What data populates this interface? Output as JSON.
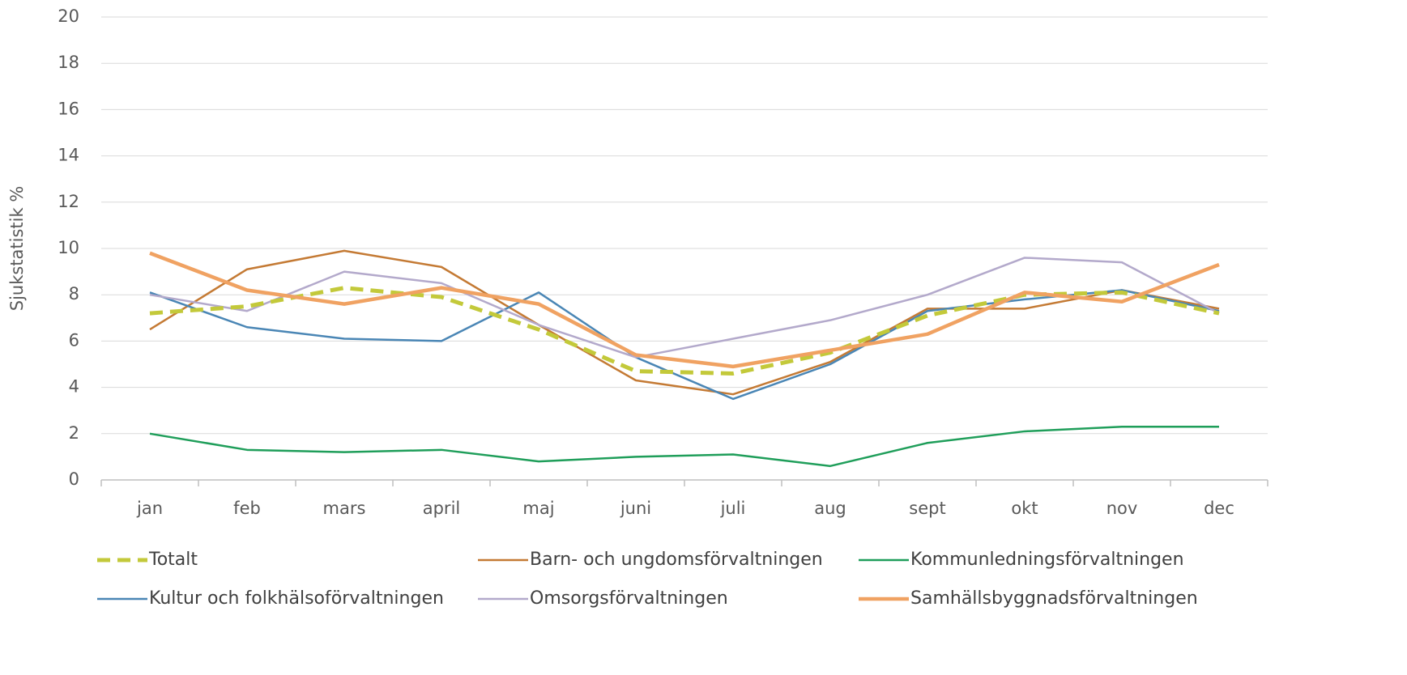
{
  "chart_data": {
    "type": "line",
    "y_label": "Sjukstatistik %",
    "categories": [
      "jan",
      "feb",
      "mars",
      "april",
      "maj",
      "juni",
      "juli",
      "aug",
      "sept",
      "okt",
      "nov",
      "dec"
    ],
    "ylim": [
      0,
      20
    ],
    "yticks": [
      0,
      2,
      4,
      6,
      8,
      10,
      12,
      14,
      16,
      18,
      20
    ],
    "grid": true,
    "series": [
      {
        "name": "Totalt",
        "color": "#c3c93a",
        "dashed": true,
        "values": [
          7.2,
          7.5,
          8.3,
          7.9,
          6.5,
          4.7,
          4.6,
          5.5,
          7.1,
          8.0,
          8.1,
          7.2
        ]
      },
      {
        "name": "Barn- och ungdomsförvaltningen",
        "color": "#c47a34",
        "values": [
          6.5,
          9.1,
          9.9,
          9.2,
          6.7,
          4.3,
          3.7,
          5.1,
          7.4,
          7.4,
          8.2,
          7.4
        ]
      },
      {
        "name": "Kommunledningsförvaltningen",
        "color": "#1f9e5a",
        "values": [
          2.0,
          1.3,
          1.2,
          1.3,
          0.8,
          1.0,
          1.1,
          0.6,
          1.6,
          2.1,
          2.3,
          2.3
        ]
      },
      {
        "name": "Kultur och folkhälsoförvaltningen",
        "color": "#4a86b5",
        "values": [
          8.1,
          6.6,
          6.1,
          6.0,
          8.1,
          5.3,
          3.5,
          5.0,
          7.3,
          7.8,
          8.2,
          7.3
        ]
      },
      {
        "name": "Omsorgsförvaltningen",
        "color": "#b3a9cb",
        "values": [
          8.0,
          7.3,
          9.0,
          8.5,
          6.7,
          5.3,
          6.1,
          6.9,
          8.0,
          9.6,
          9.4,
          7.2
        ]
      },
      {
        "name": "Samhällsbyggnadsförvaltningen",
        "color": "#f0a262",
        "thick": true,
        "values": [
          9.8,
          8.2,
          7.6,
          8.3,
          7.6,
          5.4,
          4.9,
          5.6,
          6.3,
          8.1,
          7.7,
          9.3
        ]
      }
    ]
  }
}
